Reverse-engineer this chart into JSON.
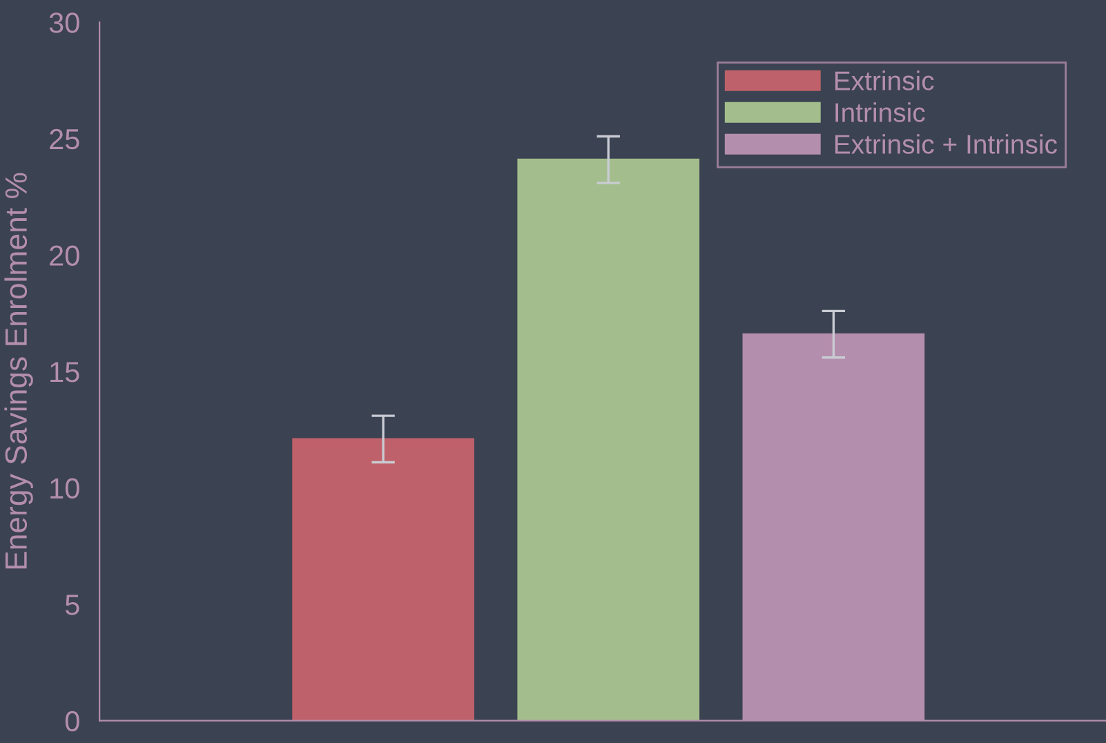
{
  "chart_data": {
    "type": "bar",
    "ylabel": "Energy Savings Enrolment %",
    "categories": [
      null,
      null,
      null
    ],
    "series": [
      {
        "name": "Extrinsic",
        "color": "#bf616a",
        "values": [
          12.1,
          null,
          null
        ],
        "errors": [
          1.0,
          null,
          null
        ]
      },
      {
        "name": "Intrinsic",
        "color": "#a3be8c",
        "values": [
          null,
          24.1,
          null
        ],
        "errors": [
          null,
          1.0,
          null
        ]
      },
      {
        "name": "Extrinsic + Intrinsic",
        "color": "#b48ead",
        "values": [
          null,
          null,
          16.6
        ],
        "errors": [
          null,
          null,
          1.0
        ]
      }
    ],
    "ylim": [
      0,
      30
    ],
    "yticks": [
      0,
      5,
      10,
      15,
      20,
      25,
      30
    ],
    "grid": false,
    "legend": "top right"
  }
}
